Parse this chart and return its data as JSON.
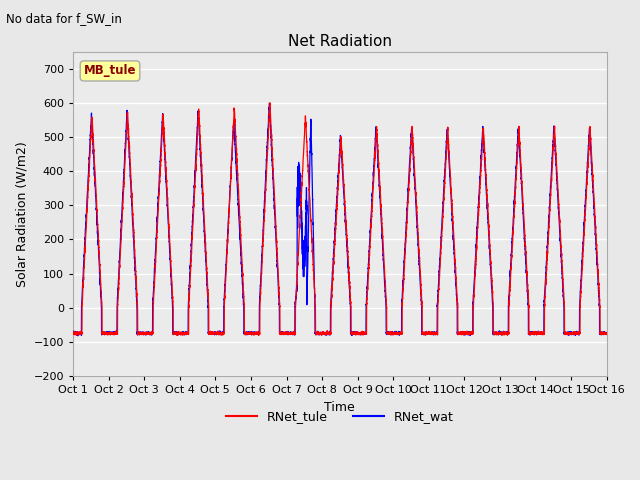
{
  "title": "Net Radiation",
  "suptitle": "No data for f_SW_in",
  "xlabel": "Time",
  "ylabel": "Solar Radiation (W/m2)",
  "ylim": [
    -200,
    750
  ],
  "yticks": [
    -200,
    -100,
    0,
    100,
    200,
    300,
    400,
    500,
    600,
    700
  ],
  "xlim": [
    0,
    15
  ],
  "xtick_labels": [
    "Oct 1",
    "Oct 2",
    "Oct 3",
    "Oct 4",
    "Oct 5",
    "Oct 6",
    "Oct 7",
    "Oct 8",
    "Oct 9",
    "Oct 10",
    "Oct 11",
    "Oct 12",
    "Oct 13",
    "Oct 14",
    "Oct 15",
    "Oct 16"
  ],
  "xtick_positions": [
    0,
    1,
    2,
    3,
    4,
    5,
    6,
    7,
    8,
    9,
    10,
    11,
    12,
    13,
    14,
    15
  ],
  "legend_entries": [
    "RNet_tule",
    "RNet_wat"
  ],
  "legend_colors": [
    "red",
    "blue"
  ],
  "color_tule": "red",
  "color_wat": "blue",
  "annotation_text": "MB_tule",
  "bg_color": "#e8e8e8",
  "plot_bg_color": "#ebebeb",
  "grid_color": "white",
  "n_days": 15,
  "day_peak_tule": [
    565,
    575,
    565,
    580,
    588,
    600,
    560,
    500,
    530,
    530,
    525,
    530,
    525,
    530,
    530
  ],
  "day_peak_wat": [
    565,
    575,
    565,
    580,
    548,
    600,
    290,
    500,
    530,
    530,
    525,
    530,
    525,
    530,
    530
  ],
  "night_val": -75,
  "samples_per_day": 480
}
